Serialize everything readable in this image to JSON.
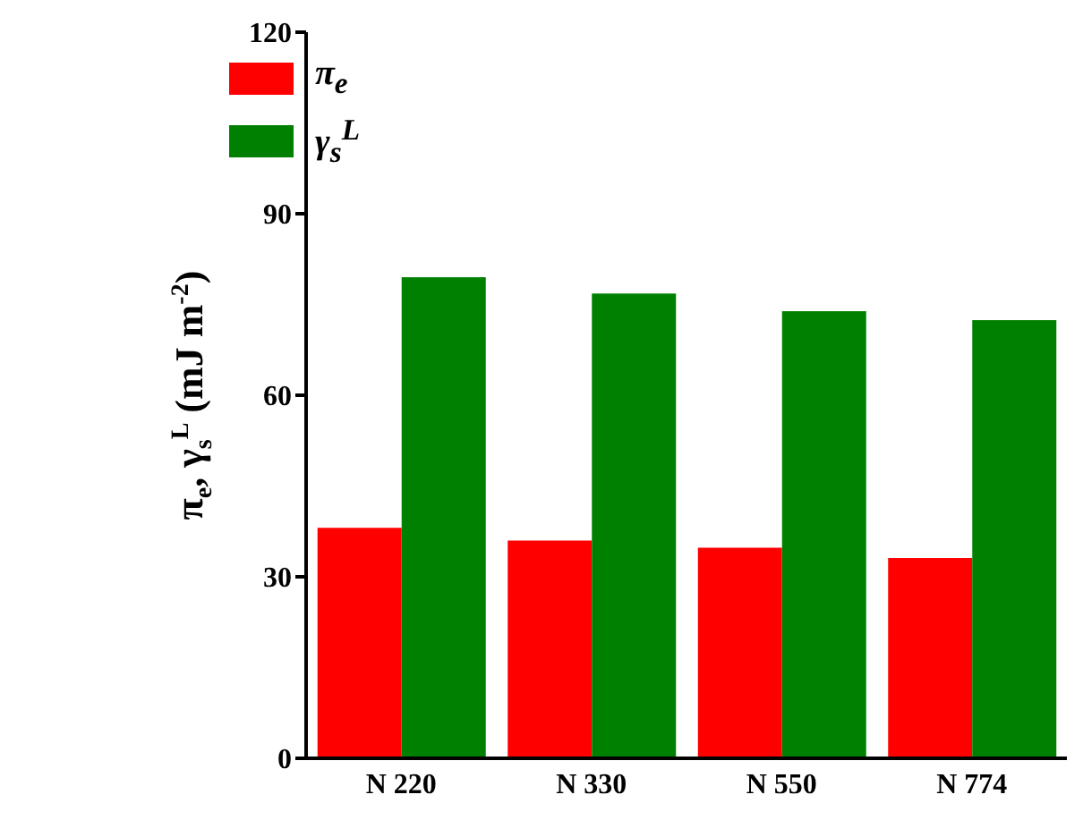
{
  "chart_data": {
    "type": "bar",
    "ylabel": "π$_{e}$, γ$_{s}$$^{L}$ (mJ m$^{-2}$)",
    "categories": [
      "N 220",
      "N 330",
      "N 550",
      "N 774"
    ],
    "series": [
      {
        "name": "π$_{e}$",
        "color": "#ff0000",
        "values": [
          38.1,
          36.0,
          34.8,
          33.1
        ]
      },
      {
        "name": "γ$_{s}$$^{L}$",
        "color": "#008000",
        "values": [
          79.5,
          76.8,
          73.9,
          72.4
        ]
      }
    ],
    "ylim": [
      0,
      120
    ],
    "yticks": [
      0,
      30,
      60,
      90,
      120
    ],
    "grid": false,
    "legend": "top left"
  }
}
